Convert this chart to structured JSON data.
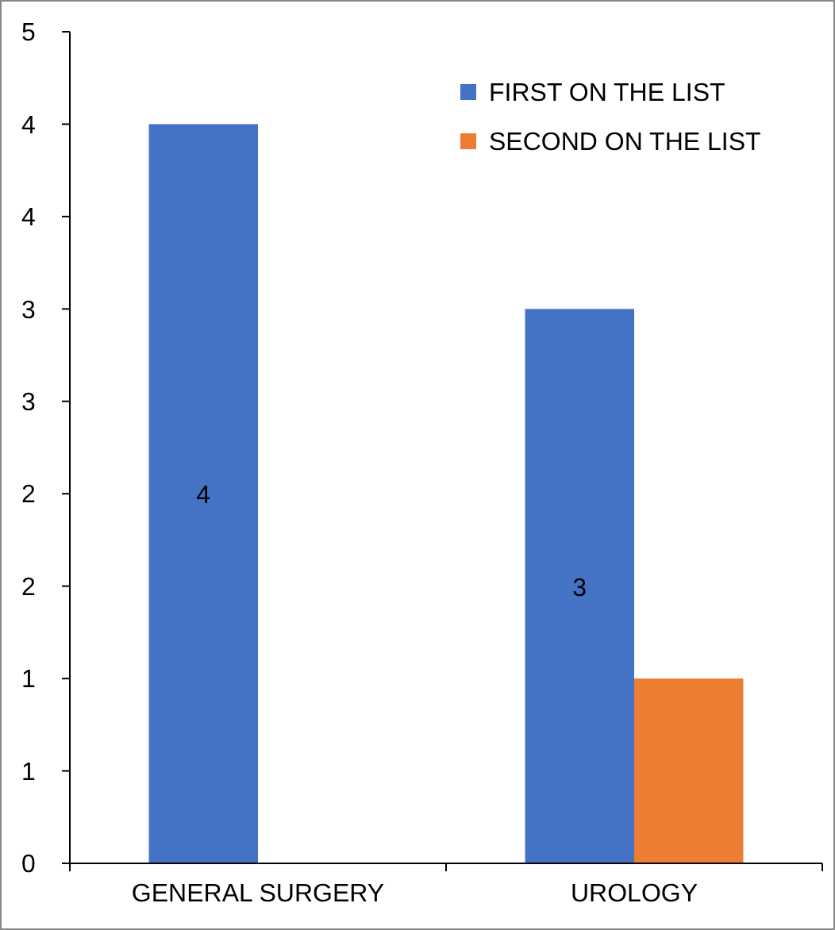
{
  "chart_data": {
    "type": "bar",
    "categories": [
      "GENERAL SURGERY",
      "UROLOGY"
    ],
    "series": [
      {
        "name": "FIRST ON THE LIST",
        "color": "#4472c4",
        "values": [
          4,
          3
        ],
        "value_labels": [
          "4",
          "3"
        ]
      },
      {
        "name": "SECOND ON THE LIST",
        "color": "#ed7d31",
        "values": [
          0,
          1
        ]
      }
    ],
    "ylim": [
      0,
      4.5
    ],
    "yticks": [
      0,
      {
        "value": 0.5,
        "label": "1"
      },
      1,
      {
        "value": 1.5,
        "label": "2"
      },
      2,
      {
        "value": 2.5,
        "label": "3"
      },
      3,
      {
        "value": 3.5,
        "label": "4"
      },
      4,
      {
        "value": 4.5,
        "label": "5"
      }
    ],
    "legend": "top right",
    "grid": false
  }
}
